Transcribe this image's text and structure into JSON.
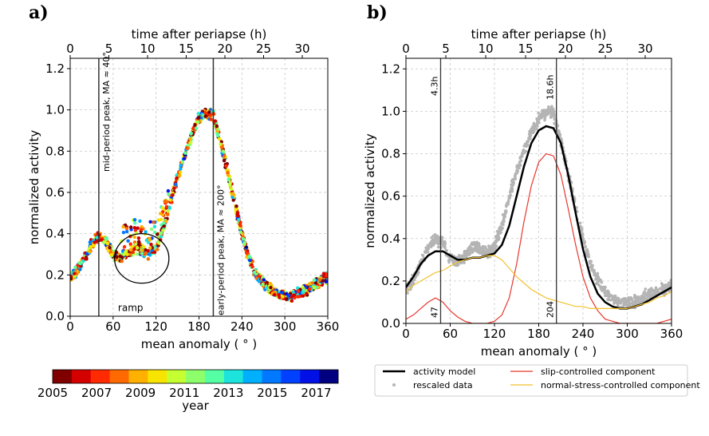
{
  "panels": {
    "a": {
      "letter": "a)"
    },
    "b": {
      "letter": "b)"
    }
  },
  "chart_data": [
    {
      "id": "a",
      "type": "scatter",
      "title": "",
      "xlabel": "mean anomaly ($^\\circ$)",
      "xlabel_display": "mean anomaly ( ° )",
      "ylabel": "normalized activity",
      "top_xlabel": "time after periapse (h)",
      "xlim": [
        0,
        360
      ],
      "ylim": [
        0,
        1.25
      ],
      "x_ticks": [
        0,
        60,
        120,
        180,
        240,
        300,
        360
      ],
      "y_ticks": [
        0.0,
        0.2,
        0.4,
        0.6,
        0.8,
        1.0,
        1.2
      ],
      "top_ticks": [
        0,
        5,
        10,
        15,
        20,
        25,
        30
      ],
      "grid": true,
      "vlines": [
        {
          "x": 40,
          "label": "mid-period peak, MA ≈ 40°"
        },
        {
          "x": 200,
          "label": "early-period peak, MA ≈ 200°"
        }
      ],
      "annotation": {
        "text": "ramp",
        "circle_center": [
          100,
          0.28
        ],
        "radius_x": 38,
        "radius_y": 0.12
      },
      "colorbar": {
        "label": "year",
        "range": [
          2005,
          2018
        ],
        "ticks": [
          "2005",
          "2007",
          "2009",
          "2011",
          "2013",
          "2015",
          "2017"
        ],
        "colors": [
          "#800000",
          "#d40000",
          "#ff2a00",
          "#ff6a00",
          "#ffb000",
          "#f7e400",
          "#c6ff31",
          "#8dff6a",
          "#55ffa3",
          "#1ce3db",
          "#00b0ff",
          "#0078ff",
          "#0040ff",
          "#0010e6",
          "#000080"
        ]
      },
      "trend": {
        "x": [
          0,
          10,
          20,
          30,
          40,
          50,
          60,
          70,
          80,
          90,
          100,
          110,
          120,
          130,
          140,
          150,
          160,
          170,
          180,
          190,
          200,
          210,
          220,
          230,
          240,
          250,
          260,
          270,
          280,
          290,
          300,
          310,
          320,
          330,
          340,
          350,
          360
        ],
        "y": [
          0.19,
          0.22,
          0.28,
          0.35,
          0.39,
          0.36,
          0.3,
          0.28,
          0.3,
          0.33,
          0.32,
          0.3,
          0.33,
          0.42,
          0.55,
          0.68,
          0.78,
          0.88,
          0.96,
          0.99,
          0.98,
          0.85,
          0.7,
          0.55,
          0.4,
          0.28,
          0.2,
          0.16,
          0.13,
          0.11,
          0.1,
          0.1,
          0.11,
          0.13,
          0.15,
          0.17,
          0.19
        ]
      }
    },
    {
      "id": "b",
      "type": "line",
      "title": "",
      "xlabel": "mean anomaly ($^\\circ$)",
      "xlabel_display": "mean anomaly ( ° )",
      "ylabel": "normalized activity",
      "top_xlabel": "time after periapse (h)",
      "xlim": [
        0,
        360
      ],
      "ylim": [
        0,
        1.25
      ],
      "x_ticks": [
        0,
        60,
        120,
        180,
        240,
        300,
        360
      ],
      "y_ticks": [
        0.0,
        0.2,
        0.4,
        0.6,
        0.8,
        1.0,
        1.2
      ],
      "top_ticks": [
        0,
        5,
        10,
        15,
        20,
        25,
        30
      ],
      "grid": true,
      "vlines": [
        {
          "x": 47,
          "top_label": "4.3h",
          "bottom_label": "47"
        },
        {
          "x": 204,
          "top_label": "18.6h",
          "bottom_label": "204"
        }
      ],
      "legend_position": "below",
      "series": [
        {
          "name": "activity model",
          "color": "#000000",
          "x": [
            0,
            10,
            20,
            30,
            40,
            50,
            60,
            70,
            80,
            90,
            100,
            110,
            120,
            130,
            140,
            150,
            160,
            170,
            180,
            190,
            200,
            210,
            220,
            230,
            240,
            250,
            260,
            270,
            280,
            290,
            300,
            310,
            320,
            330,
            340,
            350,
            360
          ],
          "y": [
            0.17,
            0.22,
            0.28,
            0.32,
            0.34,
            0.34,
            0.32,
            0.3,
            0.3,
            0.31,
            0.31,
            0.32,
            0.33,
            0.37,
            0.46,
            0.6,
            0.74,
            0.85,
            0.91,
            0.93,
            0.92,
            0.85,
            0.7,
            0.52,
            0.35,
            0.22,
            0.14,
            0.1,
            0.08,
            0.07,
            0.07,
            0.08,
            0.09,
            0.11,
            0.13,
            0.15,
            0.17
          ]
        },
        {
          "name": "slip-controlled component",
          "color": "#e8372e",
          "x": [
            0,
            10,
            20,
            30,
            40,
            50,
            60,
            70,
            80,
            90,
            100,
            110,
            120,
            130,
            140,
            150,
            160,
            170,
            180,
            190,
            200,
            210,
            220,
            230,
            240,
            250,
            260,
            270,
            280,
            290,
            300,
            310,
            320,
            330,
            340,
            350,
            360
          ],
          "y": [
            0.02,
            0.04,
            0.07,
            0.1,
            0.12,
            0.1,
            0.06,
            0.03,
            0.01,
            0.0,
            0.0,
            0.0,
            0.01,
            0.04,
            0.12,
            0.28,
            0.48,
            0.65,
            0.76,
            0.8,
            0.79,
            0.7,
            0.54,
            0.37,
            0.22,
            0.12,
            0.06,
            0.02,
            0.01,
            0.0,
            0.0,
            0.0,
            0.0,
            0.0,
            0.0,
            0.01,
            0.02
          ]
        },
        {
          "name": "normal-stress-controlled component",
          "color": "#f2c12e",
          "x": [
            0,
            10,
            20,
            30,
            40,
            50,
            60,
            70,
            80,
            90,
            100,
            110,
            120,
            130,
            140,
            150,
            160,
            170,
            180,
            190,
            200,
            210,
            220,
            230,
            240,
            250,
            260,
            270,
            280,
            290,
            300,
            310,
            320,
            330,
            340,
            350,
            360
          ],
          "y": [
            0.15,
            0.18,
            0.2,
            0.22,
            0.24,
            0.25,
            0.27,
            0.29,
            0.3,
            0.31,
            0.31,
            0.32,
            0.32,
            0.3,
            0.26,
            0.22,
            0.19,
            0.16,
            0.14,
            0.12,
            0.11,
            0.1,
            0.09,
            0.08,
            0.08,
            0.07,
            0.07,
            0.07,
            0.07,
            0.07,
            0.07,
            0.08,
            0.09,
            0.1,
            0.12,
            0.13,
            0.15
          ]
        },
        {
          "name": "rescaled data",
          "color": "#b4b4b4",
          "style": "scatter",
          "x": [
            0,
            10,
            20,
            30,
            40,
            50,
            60,
            70,
            80,
            90,
            100,
            110,
            120,
            130,
            140,
            150,
            160,
            170,
            180,
            190,
            200,
            210,
            220,
            230,
            240,
            250,
            260,
            270,
            280,
            290,
            300,
            310,
            320,
            330,
            340,
            350,
            360
          ],
          "y": [
            0.16,
            0.2,
            0.28,
            0.35,
            0.4,
            0.38,
            0.3,
            0.29,
            0.32,
            0.36,
            0.35,
            0.33,
            0.36,
            0.46,
            0.6,
            0.72,
            0.82,
            0.9,
            0.96,
            1.0,
            0.99,
            0.86,
            0.7,
            0.55,
            0.4,
            0.28,
            0.2,
            0.15,
            0.12,
            0.1,
            0.1,
            0.1,
            0.12,
            0.14,
            0.15,
            0.16,
            0.18
          ]
        }
      ]
    }
  ]
}
